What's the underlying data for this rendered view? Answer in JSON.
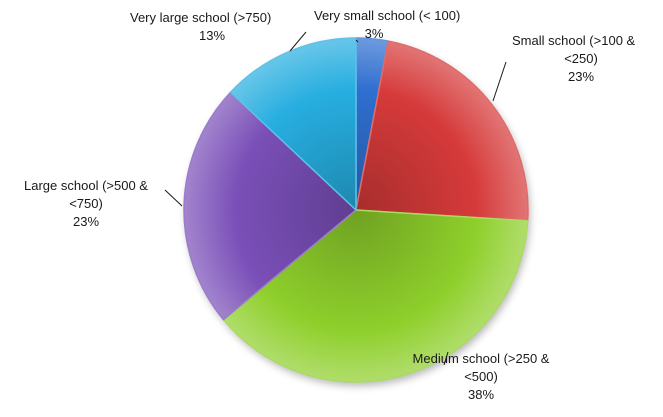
{
  "chart_data": {
    "type": "pie",
    "title": "",
    "start_angle_deg": 0,
    "direction": "clockwise",
    "slices": [
      {
        "label_lines": [
          "Very small school (< 100)"
        ],
        "percent_label": "3%",
        "value": 3,
        "color": "#2f6fd0"
      },
      {
        "label_lines": [
          "Small school (>100 &",
          "<250)"
        ],
        "percent_label": "23%",
        "value": 23,
        "color": "#d63a3a"
      },
      {
        "label_lines": [
          "Medium school (>250 &",
          "<500)"
        ],
        "percent_label": "38%",
        "value": 38,
        "color": "#8ecf2b"
      },
      {
        "label_lines": [
          "Large school (>500 &",
          "<750)"
        ],
        "percent_label": "23%",
        "value": 23,
        "color": "#7a4fb8"
      },
      {
        "label_lines": [
          "Very large school (>750)"
        ],
        "percent_label": "13%",
        "value": 13,
        "color": "#27aee0"
      }
    ]
  }
}
